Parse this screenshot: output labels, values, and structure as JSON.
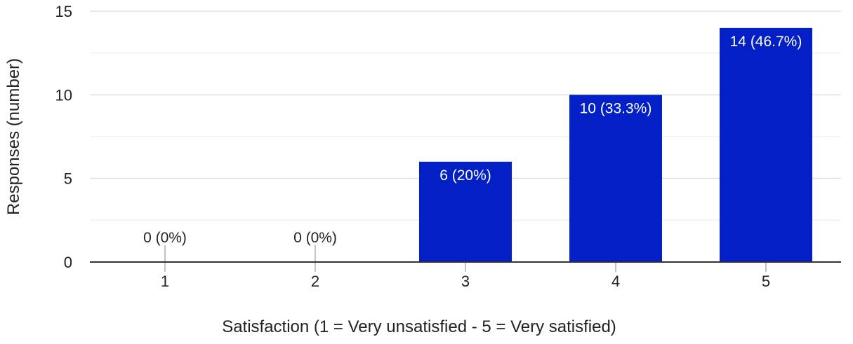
{
  "chart_data": {
    "type": "bar",
    "categories": [
      "1",
      "2",
      "3",
      "4",
      "5"
    ],
    "values": [
      0,
      0,
      6,
      10,
      14
    ],
    "data_labels": [
      "0 (0%)",
      "0 (0%)",
      "6 (20%)",
      "10 (33.3%)",
      "14 (46.7%)"
    ],
    "xlabel": "Satisfaction (1 = Very unsatisfied - 5 = Very satisfied)",
    "ylabel": "Responses (number)",
    "ylim": [
      0,
      15
    ],
    "yticks": [
      0,
      5,
      10,
      15
    ],
    "grid": true,
    "legend": "none",
    "colors": {
      "bar": "#0320c6",
      "grid": "#e8e8e8",
      "axis": "#333333",
      "text": "#222222",
      "label_on_bar": "#ffffff"
    }
  }
}
